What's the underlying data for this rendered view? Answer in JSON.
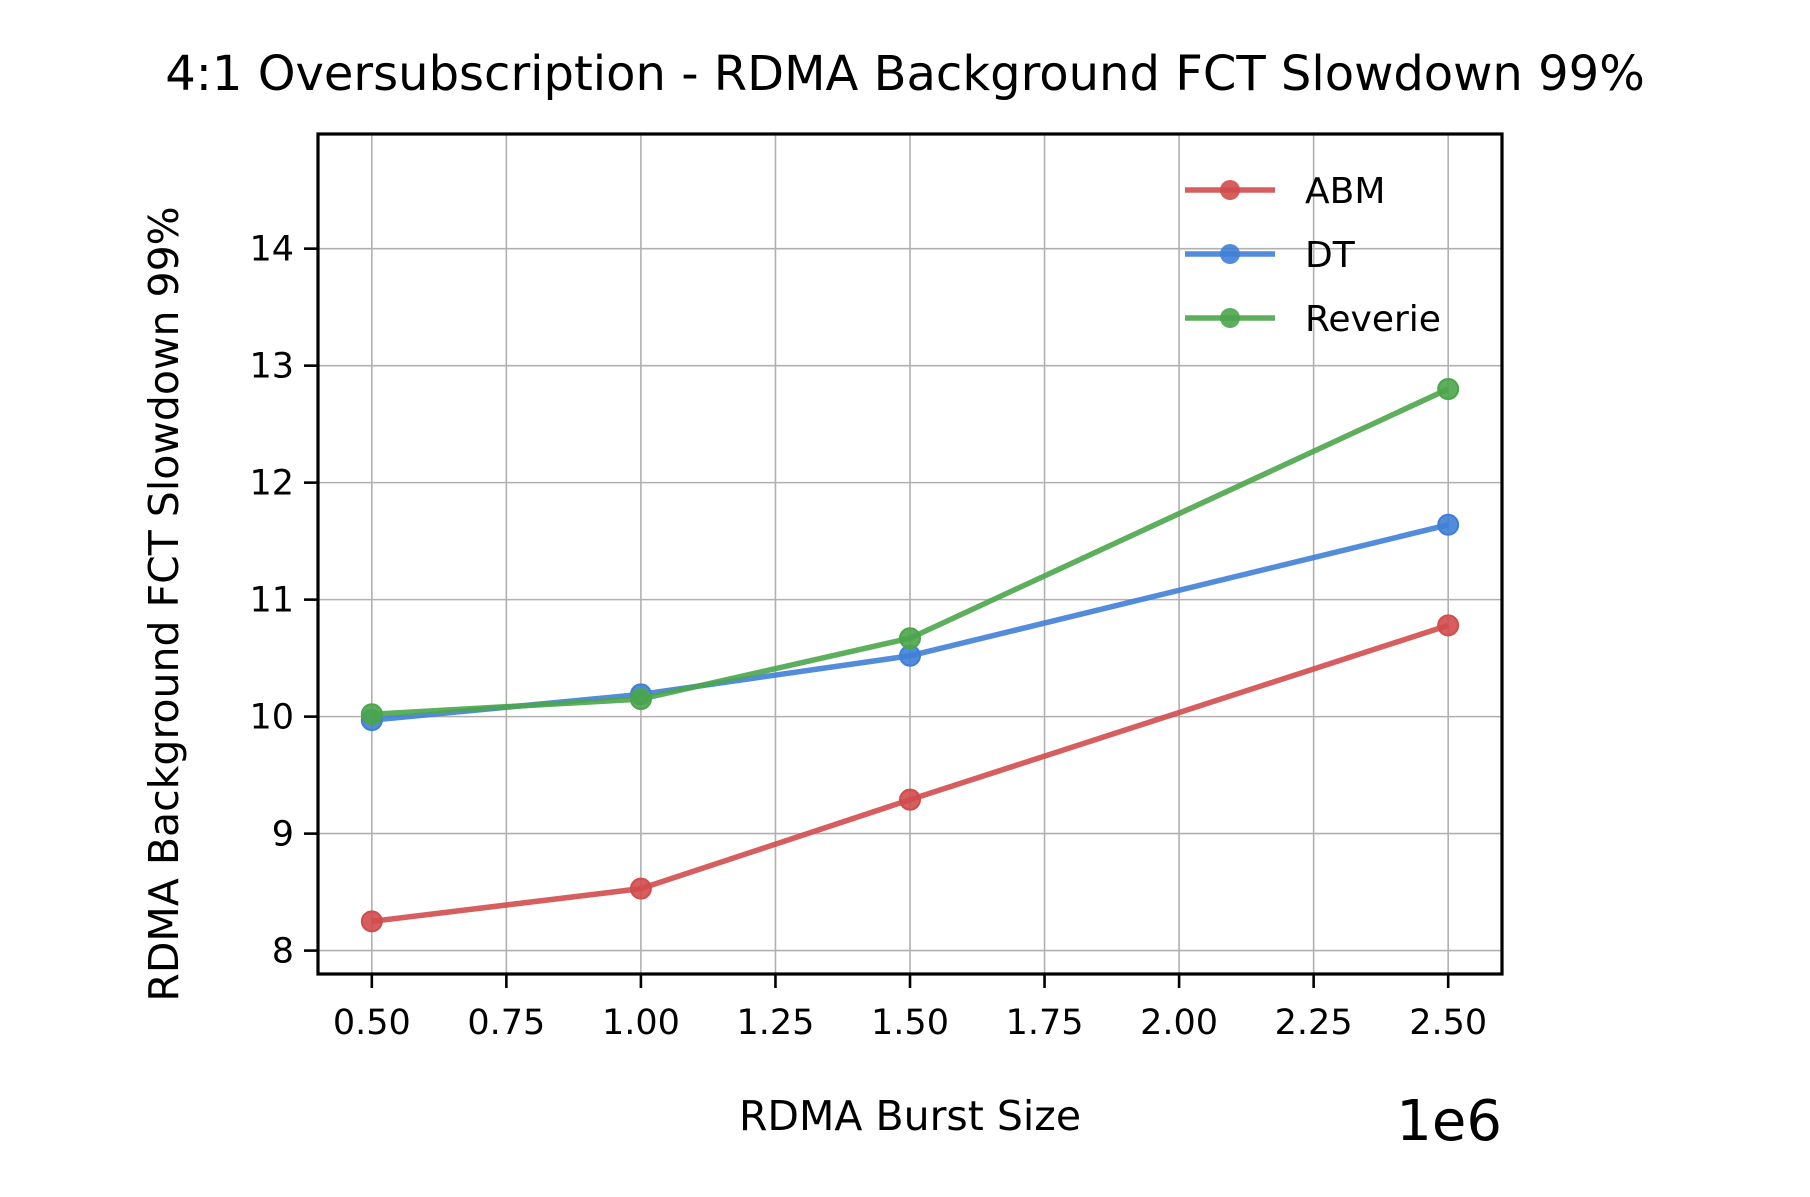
{
  "chart_data": {
    "type": "line",
    "title": "4:1 Oversubscription - RDMA Background FCT Slowdown 99%",
    "xlabel": "RDMA Burst Size",
    "ylabel": "RDMA Background FCT Slowdown 99%",
    "x_offset_label": "1e6",
    "x": [
      0.5,
      1.0,
      1.5,
      2.5
    ],
    "xlim": [
      0.4,
      2.6
    ],
    "ylim": [
      7.8,
      14.98
    ],
    "xticks": [
      0.5,
      0.75,
      1.0,
      1.25,
      1.5,
      1.75,
      2.0,
      2.25,
      2.5
    ],
    "xtick_labels": [
      "0.50",
      "0.75",
      "1.00",
      "1.25",
      "1.50",
      "1.75",
      "2.00",
      "2.25",
      "2.50"
    ],
    "yticks": [
      8,
      9,
      10,
      11,
      12,
      13,
      14
    ],
    "ytick_labels": [
      "8",
      "9",
      "10",
      "11",
      "12",
      "13",
      "14"
    ],
    "grid": true,
    "legend_position": "top-right",
    "series": [
      {
        "name": "ABM",
        "color": "#d14d4d",
        "values": [
          8.25,
          8.53,
          9.29,
          10.78
        ]
      },
      {
        "name": "DT",
        "color": "#3f7fd6",
        "values": [
          9.97,
          10.19,
          10.52,
          11.64
        ]
      },
      {
        "name": "Reverie",
        "color": "#4ba54b",
        "values": [
          10.02,
          10.15,
          10.67,
          12.8
        ]
      }
    ]
  }
}
